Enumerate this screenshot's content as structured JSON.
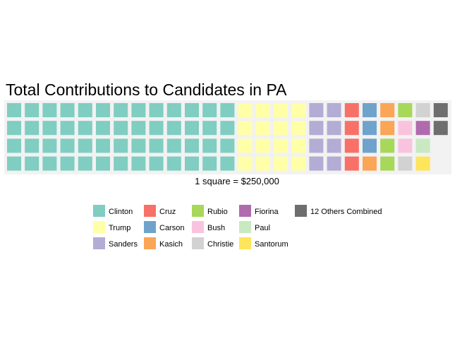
{
  "chart_data": {
    "type": "waffle",
    "title": "Total Contributions to Candidates in PA",
    "caption": "1 square = $250,000",
    "rows": 4,
    "grid": false,
    "legend_position": "bottom",
    "series": [
      {
        "name": "Clinton",
        "squares": 52,
        "color": "#80CDC1"
      },
      {
        "name": "Trump",
        "squares": 16,
        "color": "#FFFFA8"
      },
      {
        "name": "Sanders",
        "squares": 8,
        "color": "#B3ACD4"
      },
      {
        "name": "Cruz",
        "squares": 4,
        "color": "#F87168"
      },
      {
        "name": "Carson",
        "squares": 3,
        "color": "#6FA3CC"
      },
      {
        "name": "Kasich",
        "squares": 3,
        "color": "#FBA556"
      },
      {
        "name": "Rubio",
        "squares": 3,
        "color": "#A7D85A"
      },
      {
        "name": "Bush",
        "squares": 2,
        "color": "#F9C3DE"
      },
      {
        "name": "Christie",
        "squares": 2,
        "color": "#D2D2D2"
      },
      {
        "name": "Fiorina",
        "squares": 1,
        "color": "#B06BAE"
      },
      {
        "name": "Paul",
        "squares": 1,
        "color": "#C8E9C1"
      },
      {
        "name": "Santorum",
        "squares": 1,
        "color": "#FEE55B"
      },
      {
        "name": "12 Others Combined",
        "squares": 2,
        "color": "#6E6E6E"
      }
    ]
  }
}
